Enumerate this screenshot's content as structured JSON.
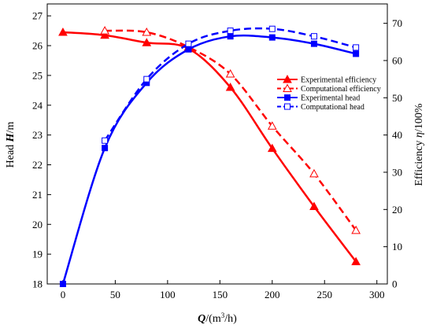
{
  "chart_data": {
    "type": "line",
    "title": "",
    "x_axis": {
      "ticks": [
        "0",
        "50",
        "100",
        "150",
        "200",
        "250",
        "300"
      ],
      "range": [
        -15,
        310
      ]
    },
    "y_left": {
      "ticks": [
        "18",
        "19",
        "20",
        "21",
        "22",
        "23",
        "24",
        "25",
        "26",
        "27"
      ],
      "range": [
        18,
        27.4
      ]
    },
    "y_right": {
      "ticks": [
        "0",
        "10",
        "20",
        "30",
        "40",
        "50",
        "60",
        "70"
      ],
      "range": [
        0,
        75.2
      ]
    },
    "legend_position": "right",
    "series": [
      {
        "name": "Experimental efficiency",
        "axis": "left",
        "color": "#ff0000",
        "line": "solid",
        "marker": "triangle-filled",
        "x": [
          0,
          40,
          80,
          120,
          160,
          200,
          240,
          280
        ],
        "y": [
          26.45,
          26.35,
          26.1,
          25.9,
          24.6,
          22.55,
          20.6,
          18.75
        ]
      },
      {
        "name": "Computational efficiency",
        "axis": "left",
        "color": "#ff0000",
        "line": "dashed",
        "marker": "triangle-open",
        "x": [
          40,
          80,
          120,
          160,
          200,
          240,
          280
        ],
        "y": [
          26.5,
          26.45,
          25.95,
          25.05,
          23.3,
          21.7,
          19.8
        ]
      },
      {
        "name": "Experimental head",
        "axis": "right",
        "color": "#0000ff",
        "line": "solid",
        "marker": "square-filled",
        "x": [
          0,
          40,
          80,
          120,
          160,
          200,
          240,
          280
        ],
        "y": [
          0,
          36.5,
          54,
          63,
          66.5,
          66.2,
          64.5,
          61.8
        ]
      },
      {
        "name": "Computational head",
        "axis": "right",
        "color": "#0000ff",
        "line": "dashed",
        "marker": "square-open",
        "x": [
          40,
          80,
          120,
          160,
          200,
          240,
          280
        ],
        "y": [
          38.5,
          55,
          64.5,
          68,
          68.5,
          66.5,
          63.5
        ]
      }
    ]
  }
}
